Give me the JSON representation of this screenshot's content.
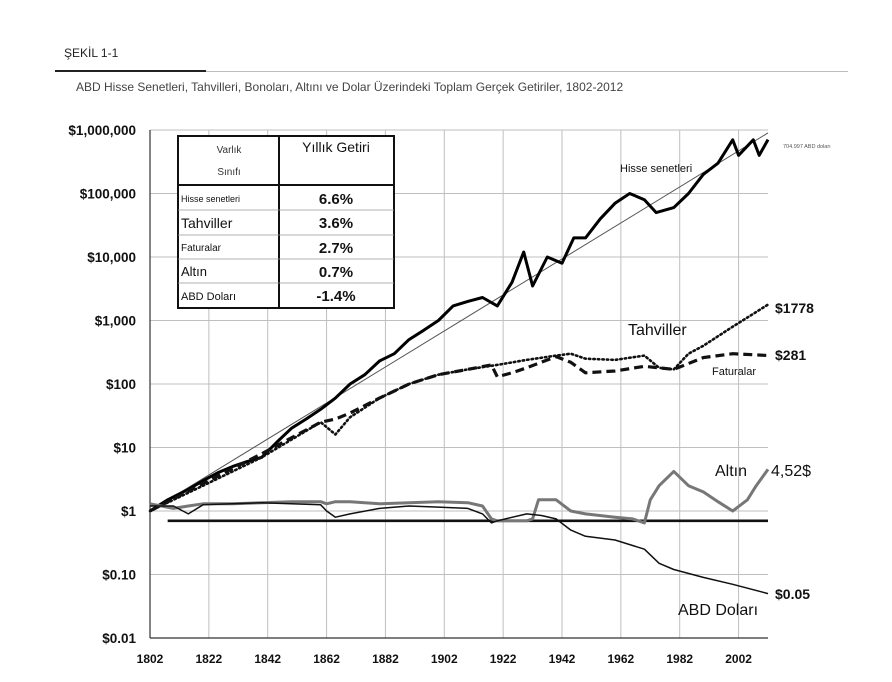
{
  "figure_label": "ŞEKİL 1-1",
  "subtitle": "ABD Hisse Senetleri, Tahvilleri, Bonoları, Altını ve Dolar Üzerindeki Toplam Gerçek Getiriler, 1802-2012",
  "colors": {
    "stocks": "#000000",
    "bonds": "#111111",
    "bills": "#111111",
    "gold": "#777777",
    "dollar": "#111111",
    "grid": "#bfbfbf"
  },
  "chart_data": {
    "type": "line",
    "y_scale": "log",
    "ylim": [
      0.01,
      1000000
    ],
    "xlim": [
      1802,
      2012
    ],
    "y_tick_values": [
      0.01,
      0.1,
      1,
      10,
      100,
      1000,
      10000,
      100000,
      1000000
    ],
    "y_tick_labels": [
      "$0.01",
      "$0.10",
      "$1",
      "$10",
      "$100",
      "$1,000",
      "$10,000",
      "$100,000",
      "$1,000,000"
    ],
    "x_tick_values": [
      1802,
      1822,
      1842,
      1862,
      1882,
      1902,
      1922,
      1942,
      1962,
      1982,
      2002
    ],
    "x_tick_labels": [
      "1802",
      "1822",
      "1842",
      "1862",
      "1882",
      "1902",
      "1922",
      "1942",
      "1962",
      "1982",
      "2002"
    ],
    "reference_value": 0.7,
    "trend": {
      "from": [
        1802,
        1
      ],
      "to": [
        2012,
        900000
      ]
    },
    "series": [
      {
        "name": "Hisse senetleri",
        "label": "Hisse senetleri",
        "end_label": "704.997 ABD doları",
        "style": "solid-thick",
        "x": [
          1802,
          1808,
          1815,
          1820,
          1825,
          1830,
          1835,
          1840,
          1845,
          1850,
          1855,
          1860,
          1865,
          1870,
          1875,
          1880,
          1885,
          1890,
          1895,
          1900,
          1905,
          1910,
          1915,
          1920,
          1925,
          1929,
          1932,
          1937,
          1942,
          1946,
          1950,
          1955,
          1960,
          1965,
          1970,
          1974,
          1980,
          1985,
          1990,
          1995,
          2000,
          2002,
          2007,
          2009,
          2012
        ],
        "y": [
          1,
          1.5,
          2.2,
          3,
          4,
          5,
          6,
          7,
          12,
          20,
          28,
          40,
          60,
          100,
          140,
          230,
          300,
          500,
          700,
          1000,
          1700,
          2000,
          2300,
          1700,
          4000,
          12000,
          3500,
          10000,
          8000,
          20000,
          20000,
          40000,
          70000,
          100000,
          80000,
          50000,
          60000,
          100000,
          200000,
          300000,
          700000,
          400000,
          700000,
          400000,
          704997
        ]
      },
      {
        "name": "Tahviller",
        "label": "Tahviller",
        "end_label": "$1778",
        "style": "dotted",
        "x": [
          1802,
          1820,
          1840,
          1860,
          1865,
          1870,
          1880,
          1890,
          1900,
          1910,
          1920,
          1930,
          1940,
          1945,
          1950,
          1960,
          1970,
          1975,
          1980,
          1985,
          1990,
          2000,
          2012
        ],
        "y": [
          1,
          2.5,
          7,
          25,
          16,
          30,
          60,
          100,
          140,
          170,
          200,
          240,
          280,
          300,
          250,
          240,
          280,
          180,
          170,
          300,
          400,
          800,
          1778
        ]
      },
      {
        "name": "Faturalar",
        "label": "Faturalar",
        "end_label": "$281",
        "style": "dashed",
        "x": [
          1802,
          1820,
          1840,
          1860,
          1865,
          1870,
          1880,
          1890,
          1900,
          1910,
          1918,
          1920,
          1925,
          1930,
          1940,
          1945,
          1950,
          1960,
          1970,
          1980,
          1990,
          2000,
          2012
        ],
        "y": [
          1,
          2.7,
          8,
          25,
          28,
          35,
          60,
          100,
          140,
          170,
          200,
          130,
          150,
          180,
          270,
          220,
          150,
          160,
          190,
          170,
          260,
          300,
          281
        ]
      },
      {
        "name": "Altın",
        "label": "Altın",
        "end_label": "4,52$",
        "style": "solid-gray",
        "x": [
          1802,
          1810,
          1815,
          1820,
          1830,
          1840,
          1850,
          1860,
          1862,
          1865,
          1870,
          1880,
          1890,
          1900,
          1910,
          1915,
          1918,
          1920,
          1930,
          1932,
          1934,
          1940,
          1945,
          1950,
          1960,
          1966,
          1970,
          1972,
          1975,
          1980,
          1985,
          1990,
          1995,
          2000,
          2005,
          2008,
          2012
        ],
        "y": [
          1.3,
          1.1,
          1.2,
          1.3,
          1.3,
          1.35,
          1.4,
          1.4,
          1.3,
          1.4,
          1.4,
          1.3,
          1.35,
          1.4,
          1.35,
          1.2,
          0.75,
          0.7,
          0.7,
          0.75,
          1.5,
          1.5,
          1.0,
          0.9,
          0.8,
          0.75,
          0.65,
          1.5,
          2.5,
          4.2,
          2.5,
          2.0,
          1.4,
          1.0,
          1.5,
          2.5,
          4.52
        ]
      },
      {
        "name": "ABD Doları",
        "label": "ABD Doları",
        "end_label": "$0.05",
        "style": "solid-thin",
        "x": [
          1802,
          1810,
          1815,
          1820,
          1830,
          1840,
          1850,
          1860,
          1862,
          1865,
          1870,
          1880,
          1890,
          1900,
          1910,
          1915,
          1918,
          1920,
          1930,
          1935,
          1940,
          1945,
          1950,
          1960,
          1970,
          1975,
          1980,
          1990,
          2000,
          2012
        ],
        "y": [
          1.2,
          1.2,
          0.9,
          1.25,
          1.3,
          1.35,
          1.3,
          1.25,
          1.0,
          0.8,
          0.9,
          1.1,
          1.2,
          1.15,
          1.1,
          0.9,
          0.65,
          0.7,
          0.9,
          0.85,
          0.75,
          0.5,
          0.4,
          0.35,
          0.25,
          0.15,
          0.12,
          0.09,
          0.07,
          0.05
        ]
      }
    ],
    "table": {
      "header_col1": [
        "Varlık",
        "Sınıfı"
      ],
      "header_col2": "Yıllık Getiri",
      "rows": [
        {
          "asset": "Hisse senetleri",
          "return": "6.6%"
        },
        {
          "asset": "Tahviller",
          "return": "3.6%"
        },
        {
          "asset": "Faturalar",
          "return": "2.7%"
        },
        {
          "asset": "Altın",
          "return": "0.7%"
        },
        {
          "asset": "ABD Doları",
          "return": "-1.4%"
        }
      ]
    }
  }
}
